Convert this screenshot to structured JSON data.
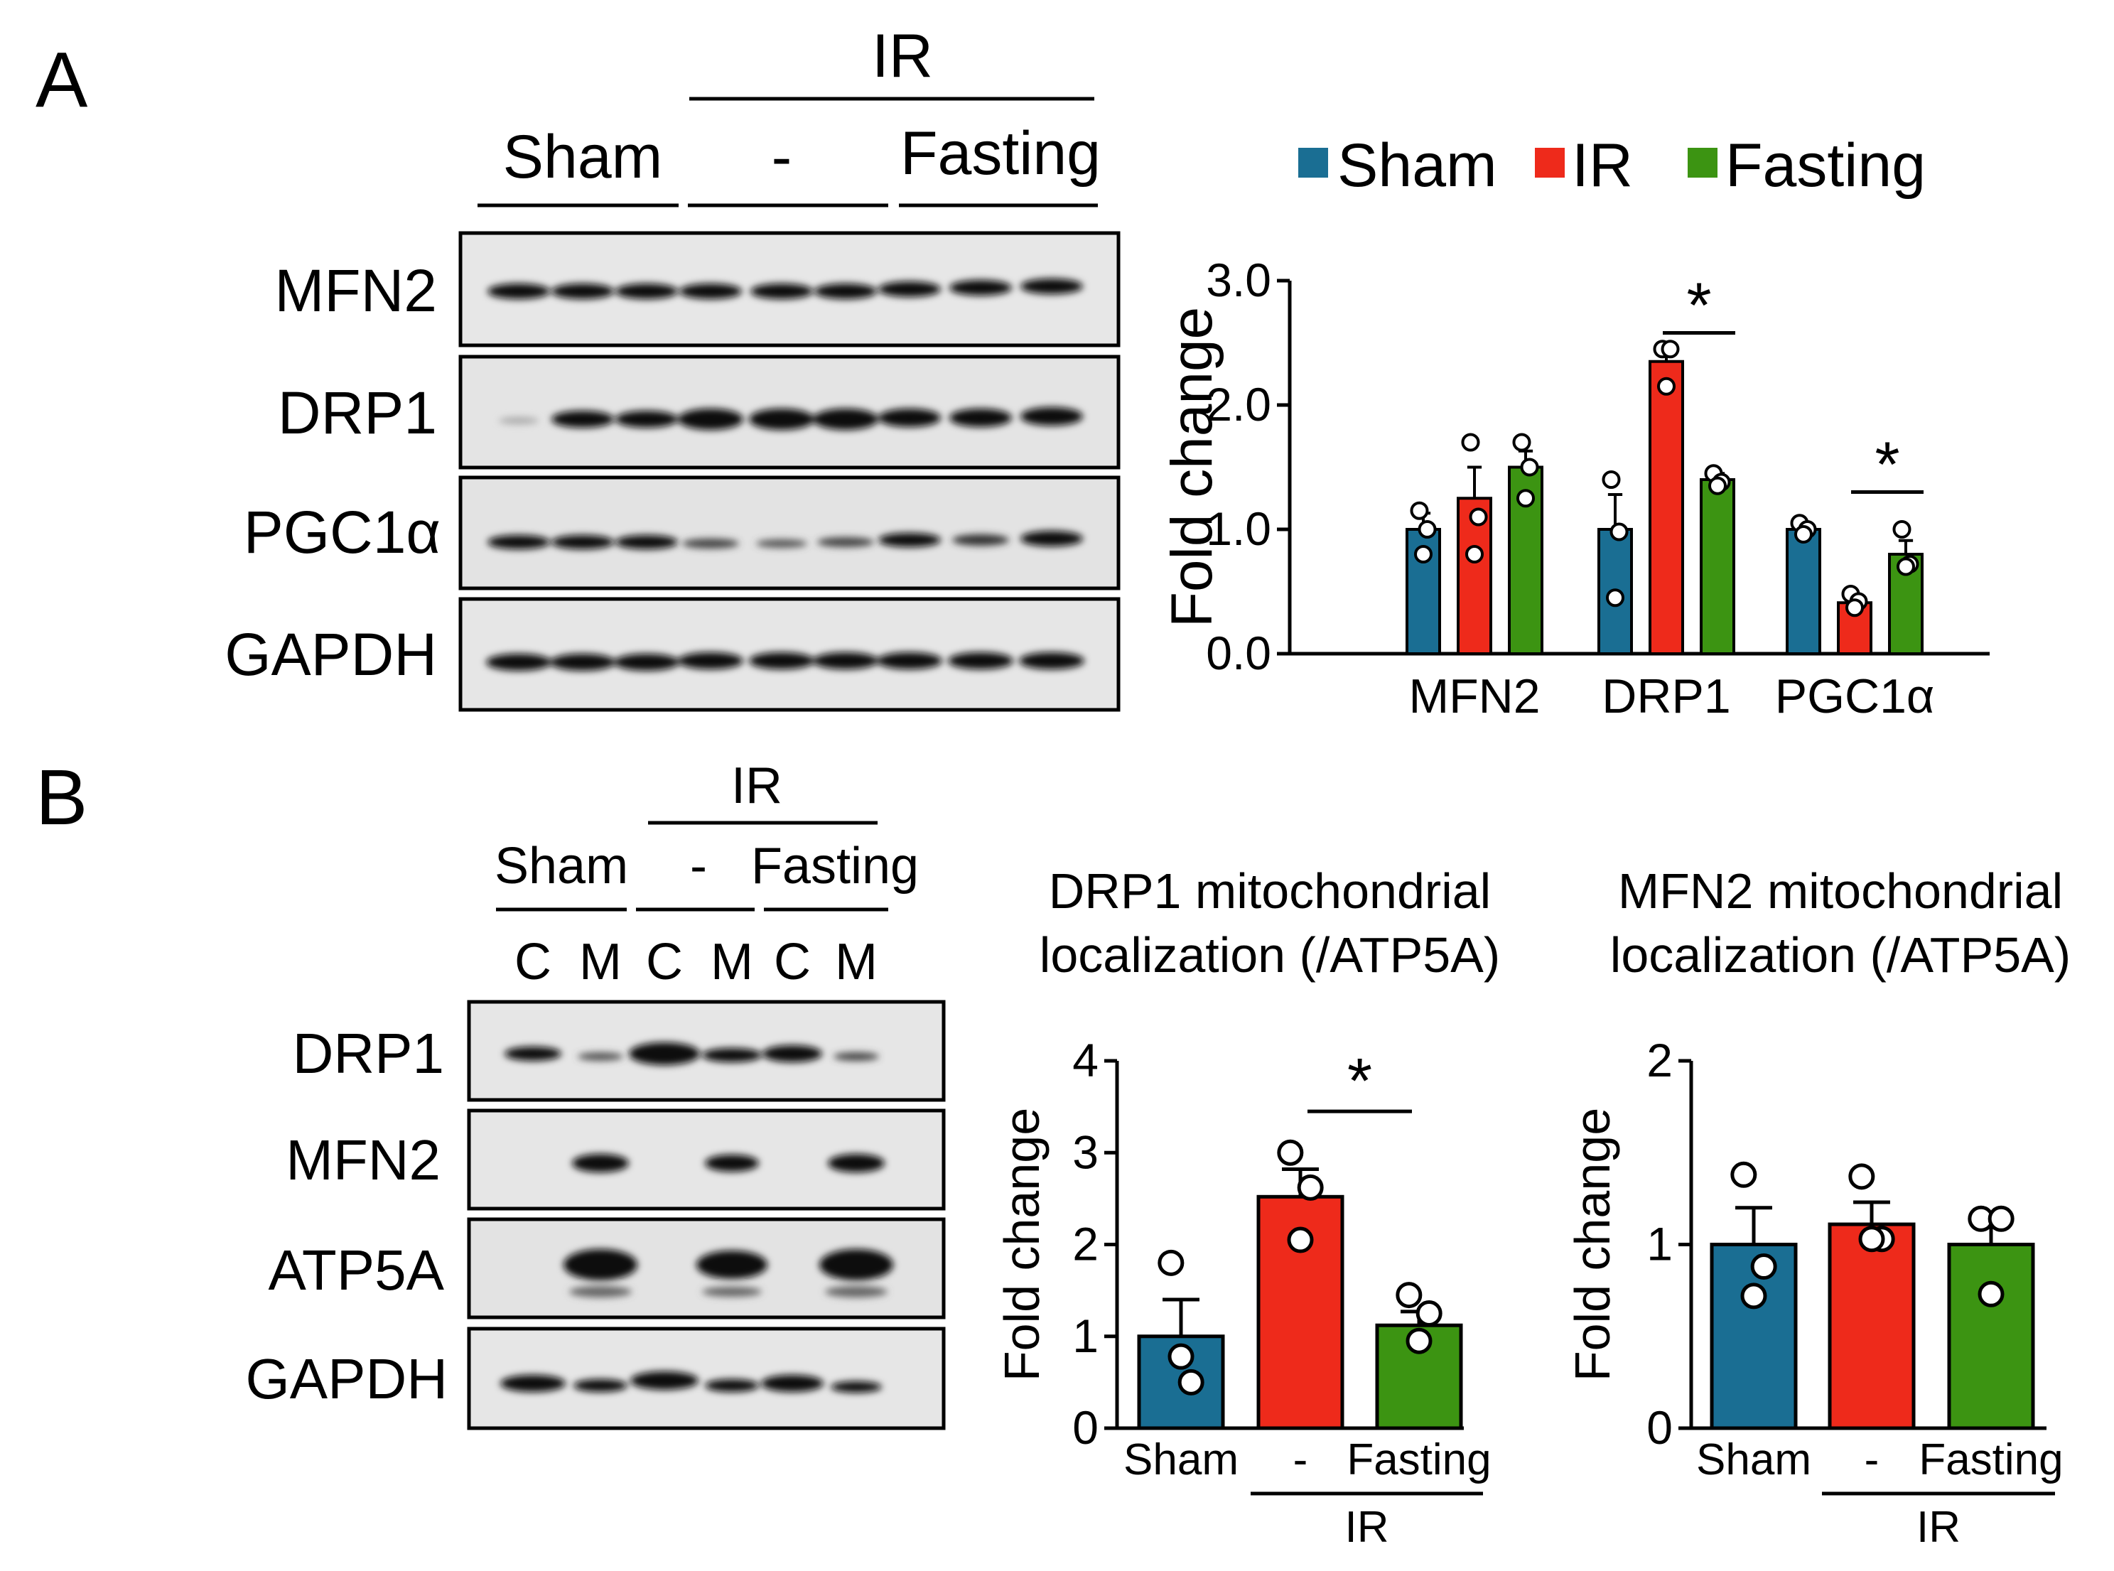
{
  "figure": {
    "panelA": {
      "letter": "A",
      "blot": {
        "group_header": "IR",
        "lane_groups": [
          "Sham",
          "-",
          "Fasting"
        ],
        "rows": [
          "MFN2",
          "DRP1",
          "PGC1α",
          "GAPDH"
        ]
      }
    },
    "panelB": {
      "letter": "B",
      "blot": {
        "group_header": "IR",
        "lane_groups": [
          "Sham",
          "-",
          "Fasting"
        ],
        "fractions": [
          "C",
          "M",
          "C",
          "M",
          "C",
          "M"
        ],
        "rows": [
          "DRP1",
          "MFN2",
          "ATP5A",
          "GAPDH"
        ]
      }
    }
  },
  "colors": {
    "sham": "#1a6e93",
    "ir": "#ee2a1b",
    "fasting": "#3c9412"
  },
  "chart_data": [
    {
      "id": "A-bar",
      "type": "bar",
      "title": "",
      "xlabel": "",
      "ylabel": "Fold change",
      "ylim": [
        0,
        3.0
      ],
      "yticks": [
        "0.0",
        "1.0",
        "2.0",
        "3.0"
      ],
      "categories": [
        "MFN2",
        "DRP1",
        "PGC1α"
      ],
      "legend": [
        "Sham",
        "IR",
        "Fasting"
      ],
      "series": [
        {
          "name": "Sham",
          "values": [
            1.0,
            1.0,
            1.0
          ],
          "errors": [
            0.13,
            0.28,
            0.05
          ],
          "points": [
            [
              1.15,
              1.0,
              0.8
            ],
            [
              1.4,
              0.98,
              0.45
            ],
            [
              1.05,
              1.0,
              0.96
            ]
          ]
        },
        {
          "name": "IR",
          "values": [
            1.25,
            2.35,
            0.41
          ],
          "errors": [
            0.25,
            0.1,
            0.05
          ],
          "points": [
            [
              1.7,
              1.1,
              0.8
            ],
            [
              2.45,
              2.45,
              2.15
            ],
            [
              0.48,
              0.42,
              0.37
            ]
          ]
        },
        {
          "name": "Fasting",
          "values": [
            1.5,
            1.4,
            0.8
          ],
          "errors": [
            0.13,
            0.05,
            0.11
          ],
          "points": [
            [
              1.7,
              1.5,
              1.25
            ],
            [
              1.45,
              1.38,
              1.35
            ],
            [
              1.0,
              0.72,
              0.7
            ]
          ]
        }
      ],
      "significance": [
        {
          "category": "DRP1",
          "between": [
            "IR",
            "Fasting"
          ],
          "label": "*"
        },
        {
          "category": "PGC1α",
          "between": [
            "IR",
            "Fasting"
          ],
          "label": "*"
        }
      ]
    },
    {
      "id": "B-drp1",
      "type": "bar",
      "title": "DRP1 mitochondrial localization (/ATP5A)",
      "title_lines": [
        "DRP1 mitochondrial",
        "localization (/ATP5A)"
      ],
      "xlabel": "",
      "ylabel": "Fold change",
      "ylim": [
        0,
        4
      ],
      "yticks": [
        "0",
        "1",
        "2",
        "3",
        "4"
      ],
      "categories": [
        "Sham",
        "-",
        "Fasting"
      ],
      "group_label": "IR",
      "values": [
        1.0,
        2.52,
        1.12
      ],
      "errors": [
        0.4,
        0.3,
        0.15
      ],
      "points": [
        [
          1.8,
          0.5,
          0.78
        ],
        [
          3.0,
          2.62,
          2.05
        ],
        [
          1.45,
          1.25,
          0.95
        ]
      ],
      "significance": [
        {
          "between": [
            "-",
            "Fasting"
          ],
          "label": "*"
        }
      ]
    },
    {
      "id": "B-mfn2",
      "type": "bar",
      "title": "MFN2 mitochondrial localization (/ATP5A)",
      "title_lines": [
        "MFN2 mitochondrial",
        "localization (/ATP5A)"
      ],
      "xlabel": "",
      "ylabel": "Fold change",
      "ylim": [
        0,
        2
      ],
      "yticks": [
        "0",
        "1",
        "2"
      ],
      "categories": [
        "Sham",
        "-",
        "Fasting"
      ],
      "group_label": "IR",
      "values": [
        1.0,
        1.11,
        1.0
      ],
      "errors": [
        0.2,
        0.12,
        0.13
      ],
      "points": [
        [
          1.38,
          0.88,
          0.72
        ],
        [
          1.37,
          1.03,
          1.03
        ],
        [
          1.14,
          1.14,
          0.73
        ]
      ],
      "significance": []
    }
  ]
}
